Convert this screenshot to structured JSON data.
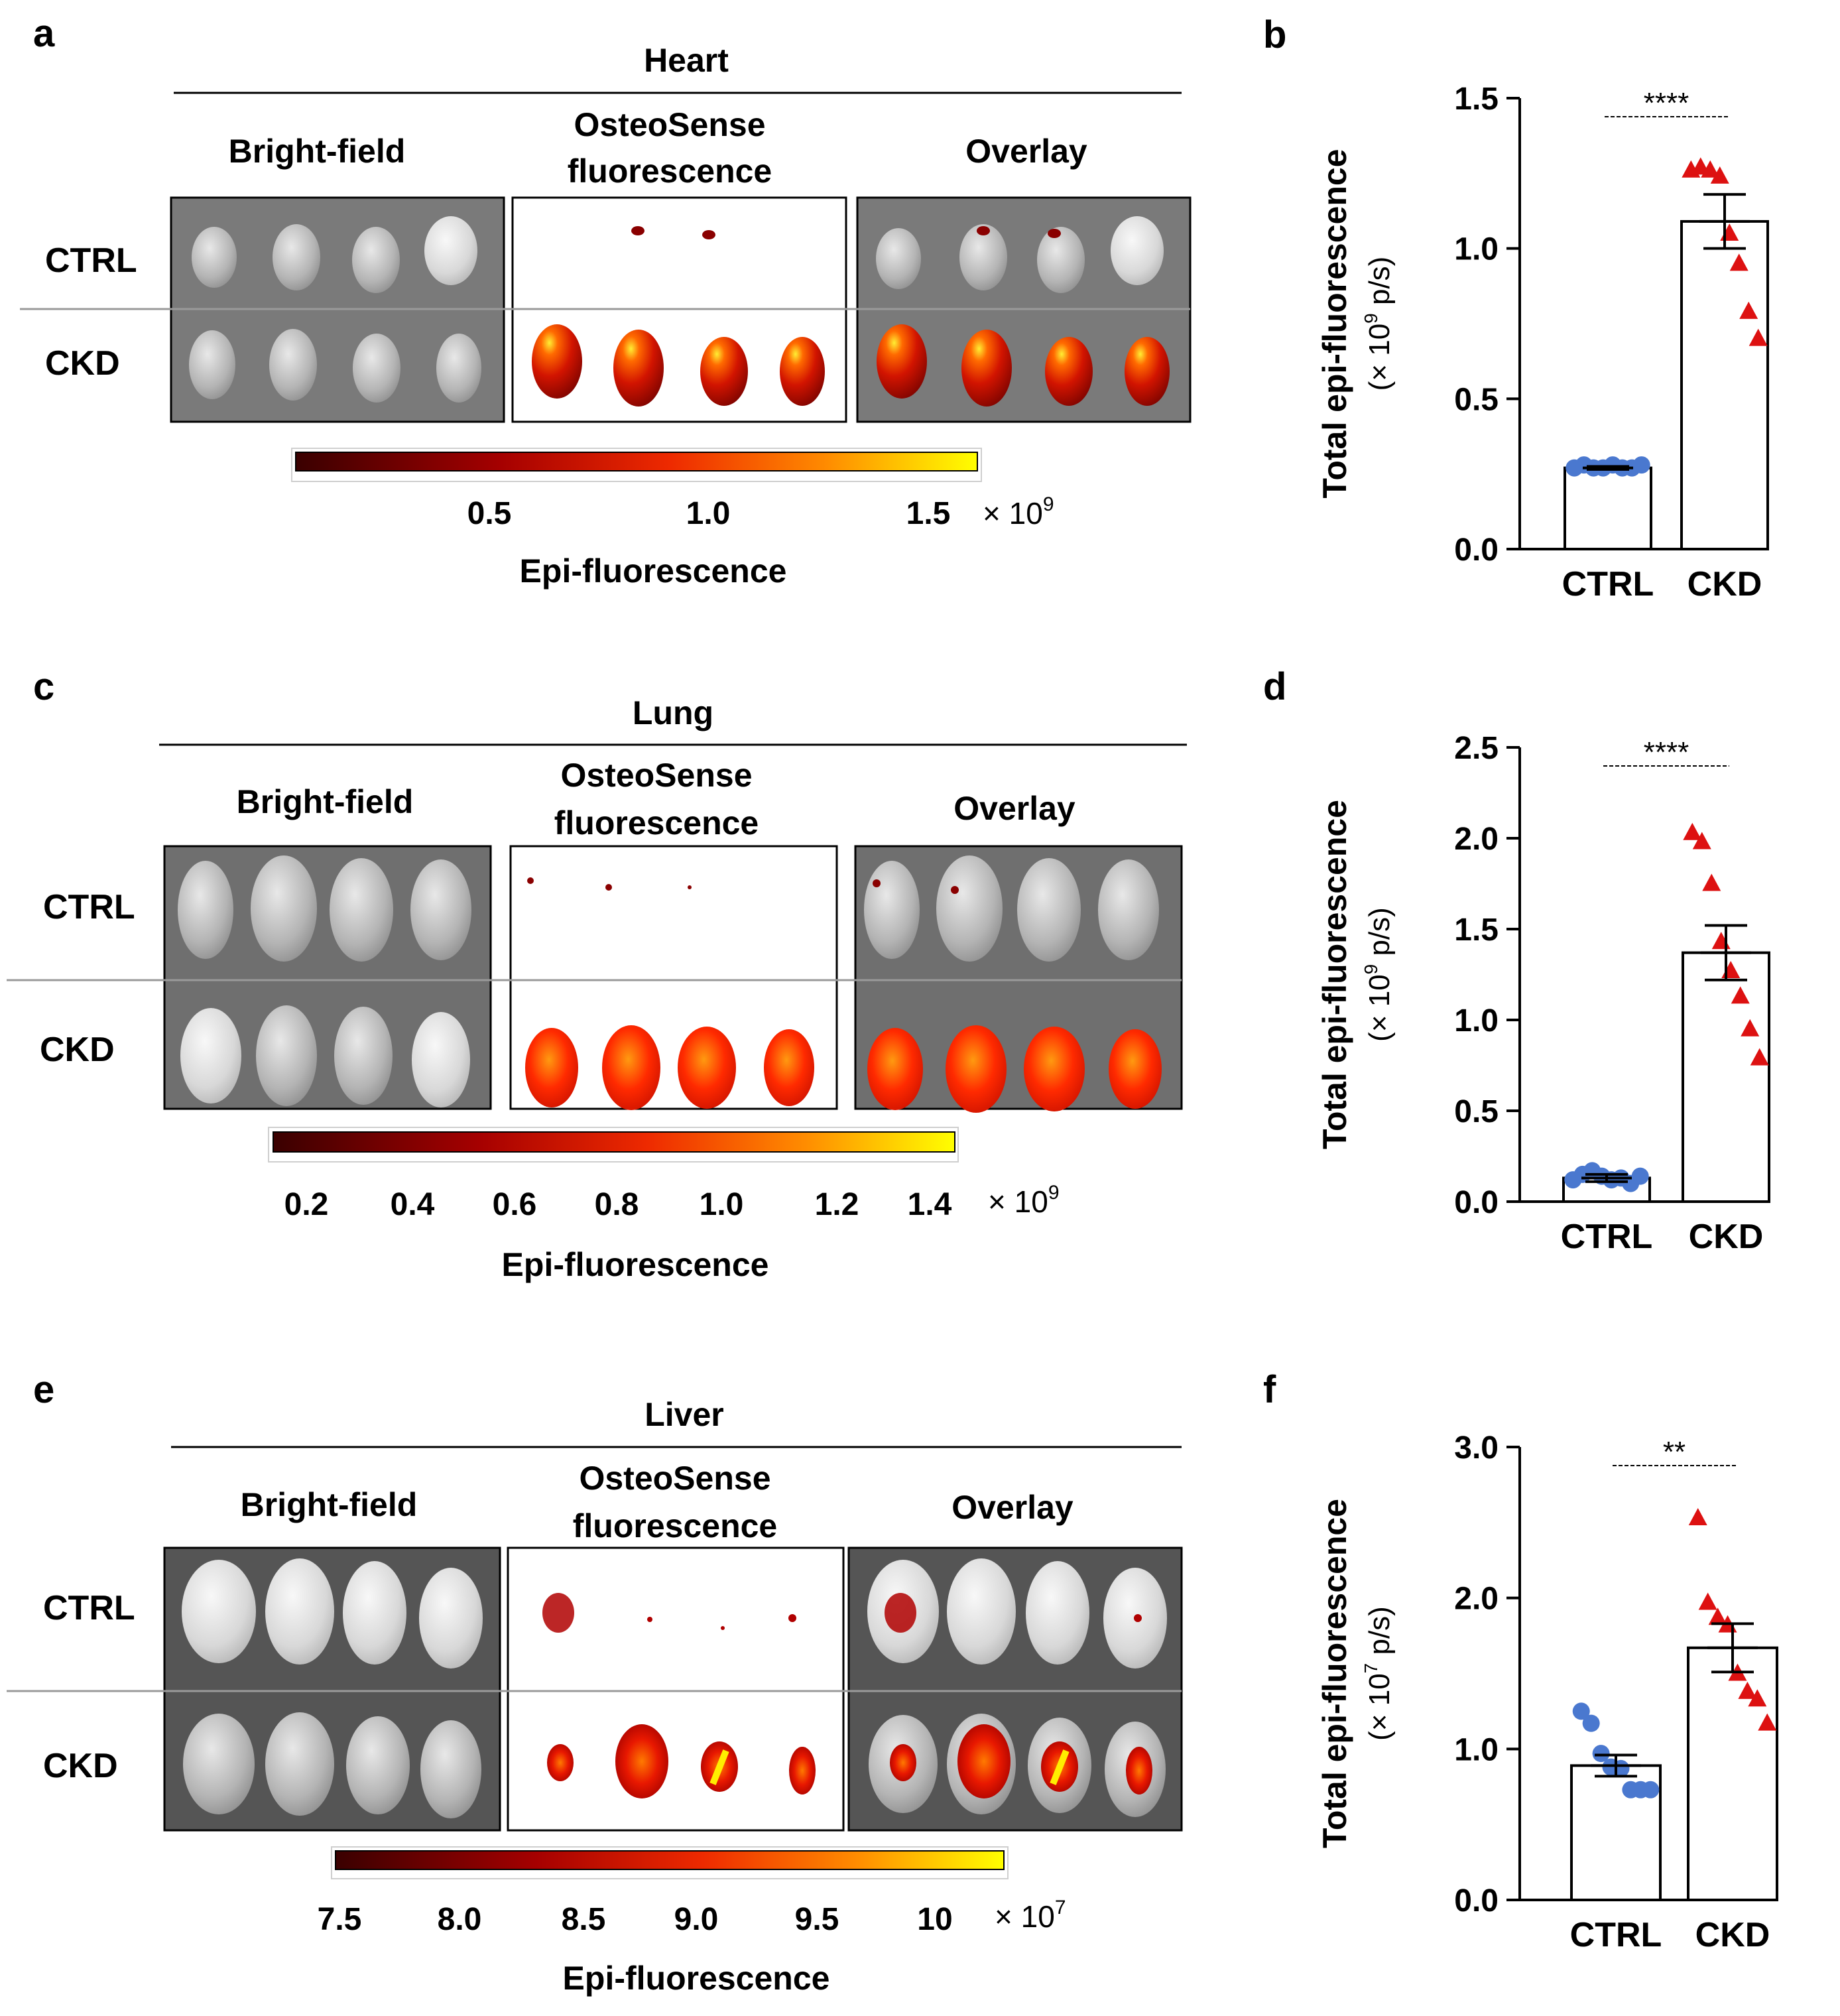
{
  "colors": {
    "ctrl": "#4a78cf",
    "ckd": "#dd1111",
    "map_low": "#3a0000",
    "map_mid": "#ee2a00",
    "map_high": "#ffff00"
  },
  "imaging_panels": [
    {
      "letter": "a",
      "organ": "Heart",
      "cols": [
        "Bright-field",
        "OsteoSense",
        "fluorescence",
        "Overlay"
      ],
      "rows": [
        "CTRL",
        "CKD"
      ],
      "colorbar": {
        "ticks": [
          "0.5",
          "1.0",
          "1.5"
        ],
        "exponent": "× 10",
        "power": "9",
        "label": "Epi-fluorescence"
      }
    },
    {
      "letter": "c",
      "organ": "Lung",
      "cols": [
        "Bright-field",
        "OsteoSense",
        "fluorescence",
        "Overlay"
      ],
      "rows": [
        "CTRL",
        "CKD"
      ],
      "colorbar": {
        "ticks": [
          "0.2",
          "0.4",
          "0.6",
          "0.8",
          "1.0",
          "1.2",
          "1.4"
        ],
        "exponent": "× 10",
        "power": "9",
        "label": "Epi-fluorescence"
      }
    },
    {
      "letter": "e",
      "organ": "Liver",
      "cols": [
        "Bright-field",
        "OsteoSense",
        "fluorescence",
        "Overlay"
      ],
      "rows": [
        "CTRL",
        "CKD"
      ],
      "colorbar": {
        "ticks": [
          "7.5",
          "8.0",
          "8.5",
          "9.0",
          "9.5",
          "10"
        ],
        "exponent": "× 10",
        "power": "7",
        "label": "Epi-fluorescence"
      }
    }
  ],
  "chart_data": [
    {
      "type": "bar",
      "letter": "b",
      "ylabel": "Total epi-fluorescence",
      "yunit_prefix": "(× 10",
      "yunit_power": "9",
      "yunit_suffix": " p/s)",
      "ylim": [
        0,
        1.5
      ],
      "yticks": [
        "0.0",
        "0.5",
        "1.0",
        "1.5"
      ],
      "categories": [
        "CTRL",
        "CKD"
      ],
      "means": [
        0.27,
        1.09
      ],
      "sem": [
        0.005,
        0.09
      ],
      "points": [
        [
          0.27,
          0.28,
          0.27,
          0.27,
          0.28,
          0.27,
          0.27,
          0.28
        ],
        [
          1.26,
          1.27,
          1.26,
          1.24,
          1.05,
          0.95,
          0.79,
          0.7
        ]
      ],
      "significance": "****"
    },
    {
      "type": "bar",
      "letter": "d",
      "ylabel": "Total epi-fluorescence",
      "yunit_prefix": "(× 10",
      "yunit_power": "9",
      "yunit_suffix": " p/s)",
      "ylim": [
        0,
        2.5
      ],
      "yticks": [
        "0.0",
        "0.5",
        "1.0",
        "1.5",
        "2.0",
        "2.5"
      ],
      "categories": [
        "CTRL",
        "CKD"
      ],
      "means": [
        0.13,
        1.37
      ],
      "sem": [
        0.02,
        0.15
      ],
      "points": [
        [
          0.12,
          0.15,
          0.17,
          0.14,
          0.12,
          0.13,
          0.1,
          0.14
        ],
        [
          2.03,
          1.98,
          1.75,
          1.43,
          1.27,
          1.13,
          0.95,
          0.79
        ]
      ],
      "significance": "****"
    },
    {
      "type": "bar",
      "letter": "f",
      "ylabel": "Total epi-fluorescence",
      "yunit_prefix": "(× 10",
      "yunit_power": "7",
      "yunit_suffix": " p/s)",
      "ylim": [
        0,
        3.0
      ],
      "yticks": [
        "0.0",
        "1.0",
        "2.0",
        "3.0"
      ],
      "categories": [
        "CTRL",
        "CKD"
      ],
      "means": [
        0.89,
        1.67
      ],
      "sem": [
        0.07,
        0.16
      ],
      "points": [
        [
          1.25,
          1.17,
          0.97,
          0.88,
          0.87,
          0.73,
          0.73,
          0.73
        ],
        [
          2.53,
          1.97,
          1.87,
          1.82,
          1.5,
          1.38,
          1.33,
          1.17
        ]
      ],
      "significance": "**"
    }
  ]
}
